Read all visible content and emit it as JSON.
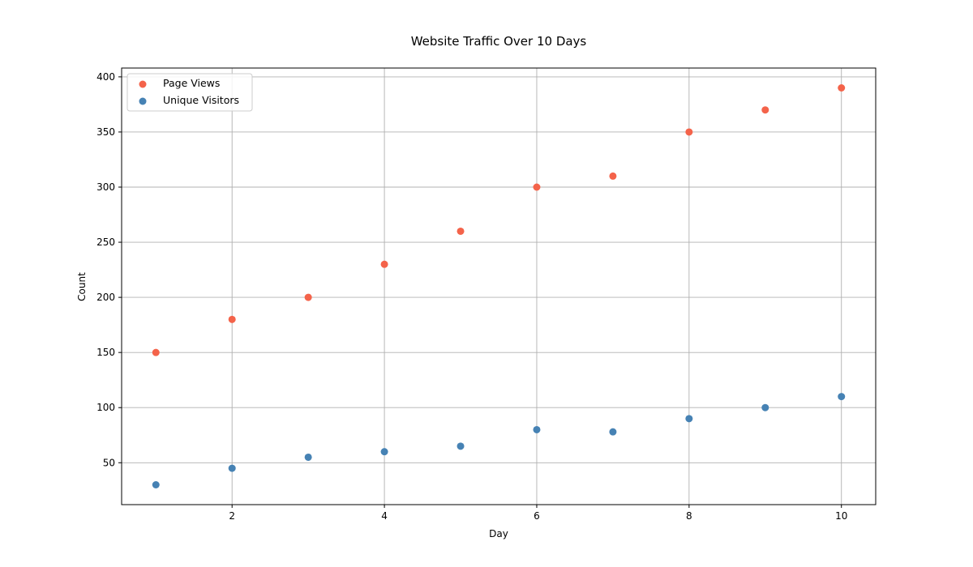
{
  "chart_data": {
    "type": "scatter",
    "title": "Website Traffic Over 10 Days",
    "xlabel": "Day",
    "ylabel": "Count",
    "xlim": [
      0.55,
      10.45
    ],
    "ylim": [
      12,
      408
    ],
    "xticks": [
      2,
      4,
      6,
      8,
      10
    ],
    "yticks": [
      50,
      100,
      150,
      200,
      250,
      300,
      350,
      400
    ],
    "grid": true,
    "legend_position": "top-left",
    "series": [
      {
        "name": "Page Views",
        "color": "#f4634a",
        "x": [
          1,
          2,
          3,
          4,
          5,
          6,
          7,
          8,
          9,
          10
        ],
        "y": [
          150,
          180,
          200,
          230,
          260,
          300,
          310,
          350,
          370,
          390
        ]
      },
      {
        "name": "Unique Visitors",
        "color": "#4682b4",
        "x": [
          1,
          2,
          3,
          4,
          5,
          6,
          7,
          8,
          9,
          10
        ],
        "y": [
          30,
          45,
          55,
          60,
          65,
          80,
          78,
          90,
          100,
          110
        ]
      }
    ]
  }
}
